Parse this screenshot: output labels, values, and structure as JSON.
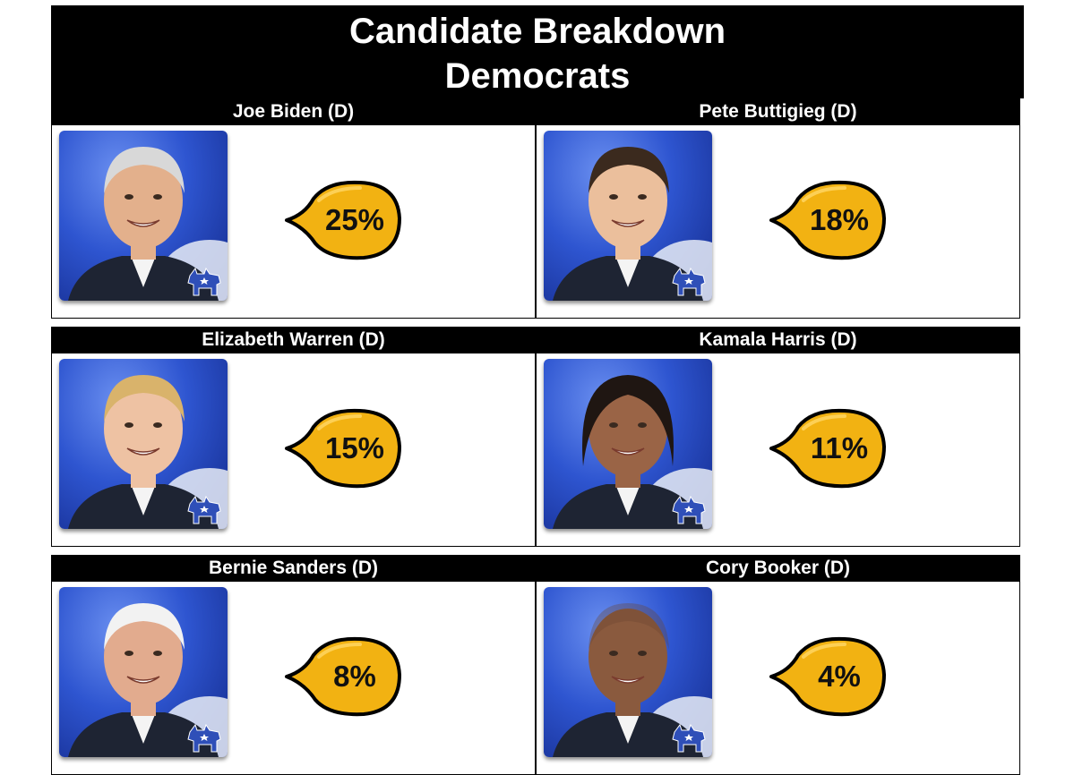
{
  "title": {
    "line1": "Candidate Breakdown",
    "line2": "Democrats"
  },
  "party_icon": "donkey-icon",
  "colors": {
    "header_bg": "#000000",
    "header_text": "#ffffff",
    "bubble_fill": "#f2b212",
    "portrait_bg": "#2e55d0"
  },
  "candidates": [
    {
      "name": "Joe Biden (D)",
      "percent": "25%"
    },
    {
      "name": "Pete Buttigieg (D)",
      "percent": "18%"
    },
    {
      "name": "Elizabeth Warren (D)",
      "percent": "15%"
    },
    {
      "name": "Kamala Harris (D)",
      "percent": "11%"
    },
    {
      "name": "Bernie Sanders (D)",
      "percent": "8%"
    },
    {
      "name": "Cory Booker (D)",
      "percent": "4%"
    }
  ]
}
